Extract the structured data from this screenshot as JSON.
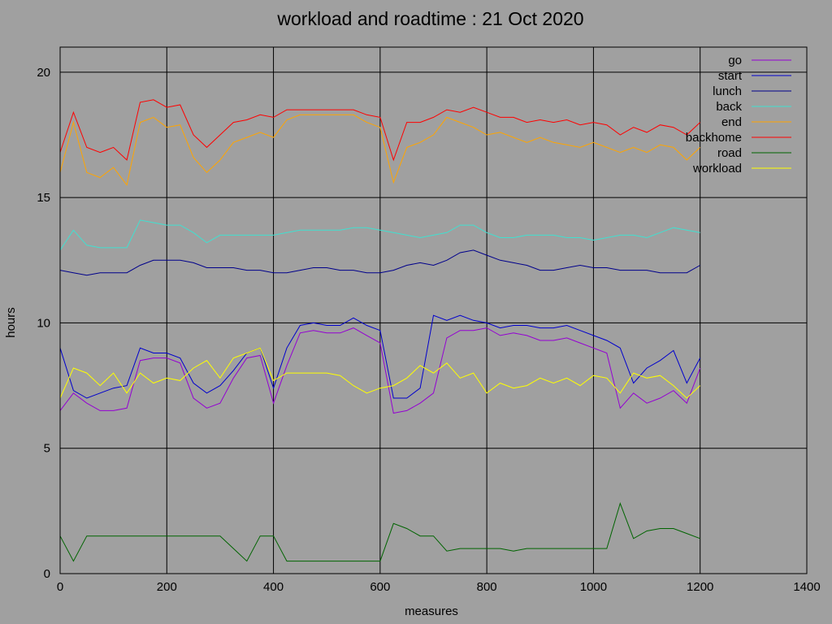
{
  "chart_data": {
    "type": "line",
    "title": "workload and roadtime : 21 Oct 2020",
    "xlabel": "measures",
    "ylabel": "hours",
    "xlim": [
      0,
      1400
    ],
    "ylim": [
      0,
      21
    ],
    "xticks": [
      0,
      200,
      400,
      600,
      800,
      1000,
      1200,
      1400
    ],
    "yticks": [
      0,
      5,
      10,
      15,
      20
    ],
    "grid": true,
    "legend_position": "top-right",
    "x": [
      0,
      25,
      50,
      75,
      100,
      125,
      150,
      175,
      200,
      225,
      250,
      275,
      300,
      325,
      350,
      375,
      400,
      425,
      450,
      475,
      500,
      525,
      550,
      575,
      600,
      625,
      650,
      675,
      700,
      725,
      750,
      775,
      800,
      825,
      850,
      875,
      900,
      925,
      950,
      975,
      1000,
      1025,
      1050,
      1075,
      1100,
      1125,
      1150,
      1175,
      1200
    ],
    "series": [
      {
        "name": "go",
        "color": "#9400d3",
        "values": [
          6.5,
          7.2,
          6.8,
          6.5,
          6.5,
          6.6,
          8.5,
          8.6,
          8.6,
          8.4,
          7.0,
          6.6,
          6.8,
          7.8,
          8.6,
          8.7,
          6.8,
          8.3,
          9.6,
          9.7,
          9.6,
          9.6,
          9.8,
          9.5,
          9.2,
          6.4,
          6.5,
          6.8,
          7.2,
          9.4,
          9.7,
          9.7,
          9.8,
          9.5,
          9.6,
          9.5,
          9.3,
          9.3,
          9.4,
          9.2,
          9.0,
          8.8,
          6.6,
          7.2,
          6.8,
          7.0,
          7.3,
          6.8,
          8.2
        ]
      },
      {
        "name": "start",
        "color": "#0000cd",
        "values": [
          9.0,
          7.3,
          7.0,
          7.2,
          7.4,
          7.5,
          9.0,
          8.8,
          8.8,
          8.6,
          7.6,
          7.2,
          7.5,
          8.1,
          8.8,
          9.0,
          7.4,
          9.0,
          9.9,
          10.0,
          9.9,
          9.9,
          10.2,
          9.9,
          9.7,
          7.0,
          7.0,
          7.4,
          10.3,
          10.1,
          10.3,
          10.1,
          10.0,
          9.8,
          9.9,
          9.9,
          9.8,
          9.8,
          9.9,
          9.7,
          9.5,
          9.3,
          9.0,
          7.6,
          8.2,
          8.5,
          8.9,
          7.6,
          8.6
        ]
      },
      {
        "name": "lunch",
        "color": "#00008b",
        "values": [
          12.1,
          12.0,
          11.9,
          12.0,
          12.0,
          12.0,
          12.3,
          12.5,
          12.5,
          12.5,
          12.4,
          12.2,
          12.2,
          12.2,
          12.1,
          12.1,
          12.0,
          12.0,
          12.1,
          12.2,
          12.2,
          12.1,
          12.1,
          12.0,
          12.0,
          12.1,
          12.3,
          12.4,
          12.3,
          12.5,
          12.8,
          12.9,
          12.7,
          12.5,
          12.4,
          12.3,
          12.1,
          12.1,
          12.2,
          12.3,
          12.2,
          12.2,
          12.1,
          12.1,
          12.1,
          12.0,
          12.0,
          12.0,
          12.3
        ]
      },
      {
        "name": "back",
        "color": "#40e0d0",
        "values": [
          12.9,
          13.7,
          13.1,
          13.0,
          13.0,
          13.0,
          14.1,
          14.0,
          13.9,
          13.9,
          13.6,
          13.2,
          13.5,
          13.5,
          13.5,
          13.5,
          13.5,
          13.6,
          13.7,
          13.7,
          13.7,
          13.7,
          13.8,
          13.8,
          13.7,
          13.6,
          13.5,
          13.4,
          13.5,
          13.6,
          13.9,
          13.9,
          13.6,
          13.4,
          13.4,
          13.5,
          13.5,
          13.5,
          13.4,
          13.4,
          13.3,
          13.4,
          13.5,
          13.5,
          13.4,
          13.6,
          13.8,
          13.7,
          13.6
        ]
      },
      {
        "name": "end",
        "color": "#ffa500",
        "values": [
          16.0,
          18.0,
          16.0,
          15.8,
          16.2,
          15.5,
          18.0,
          18.2,
          17.8,
          17.9,
          16.6,
          16.0,
          16.5,
          17.2,
          17.4,
          17.6,
          17.4,
          18.1,
          18.3,
          18.3,
          18.3,
          18.3,
          18.3,
          18.0,
          17.8,
          15.6,
          17.0,
          17.2,
          17.5,
          18.2,
          18.0,
          17.8,
          17.5,
          17.6,
          17.4,
          17.2,
          17.4,
          17.2,
          17.1,
          17.0,
          17.2,
          17.0,
          16.8,
          17.0,
          16.8,
          17.1,
          17.0,
          16.5,
          17.0
        ]
      },
      {
        "name": "backhome",
        "color": "#ff0000",
        "values": [
          16.8,
          18.4,
          17.0,
          16.8,
          17.0,
          16.5,
          18.8,
          18.9,
          18.6,
          18.7,
          17.5,
          17.0,
          17.5,
          18.0,
          18.1,
          18.3,
          18.2,
          18.5,
          18.5,
          18.5,
          18.5,
          18.5,
          18.5,
          18.3,
          18.2,
          16.5,
          18.0,
          18.0,
          18.2,
          18.5,
          18.4,
          18.6,
          18.4,
          18.2,
          18.2,
          18.0,
          18.1,
          18.0,
          18.1,
          17.9,
          18.0,
          17.9,
          17.5,
          17.8,
          17.6,
          17.9,
          17.8,
          17.5,
          18.0
        ]
      },
      {
        "name": "road",
        "color": "#006400",
        "values": [
          1.5,
          0.5,
          1.5,
          1.5,
          1.5,
          1.5,
          1.5,
          1.5,
          1.5,
          1.5,
          1.5,
          1.5,
          1.5,
          1.0,
          0.5,
          1.5,
          1.5,
          0.5,
          0.5,
          0.5,
          0.5,
          0.5,
          0.5,
          0.5,
          0.5,
          2.0,
          1.8,
          1.5,
          1.5,
          0.9,
          1.0,
          1.0,
          1.0,
          1.0,
          0.9,
          1.0,
          1.0,
          1.0,
          1.0,
          1.0,
          1.0,
          1.0,
          2.8,
          1.4,
          1.7,
          1.8,
          1.8,
          1.6,
          1.4
        ]
      },
      {
        "name": "workload",
        "color": "#ffff00",
        "values": [
          7.0,
          8.2,
          8.0,
          7.5,
          8.0,
          7.2,
          8.0,
          7.6,
          7.8,
          7.7,
          8.2,
          8.5,
          7.8,
          8.6,
          8.8,
          9.0,
          7.7,
          8.0,
          8.0,
          8.0,
          8.0,
          7.9,
          7.5,
          7.2,
          7.4,
          7.5,
          7.8,
          8.3,
          8.0,
          8.4,
          7.8,
          8.0,
          7.2,
          7.6,
          7.4,
          7.5,
          7.8,
          7.6,
          7.8,
          7.5,
          7.9,
          7.8,
          7.2,
          8.0,
          7.8,
          7.9,
          7.5,
          7.0,
          7.5
        ]
      }
    ]
  }
}
